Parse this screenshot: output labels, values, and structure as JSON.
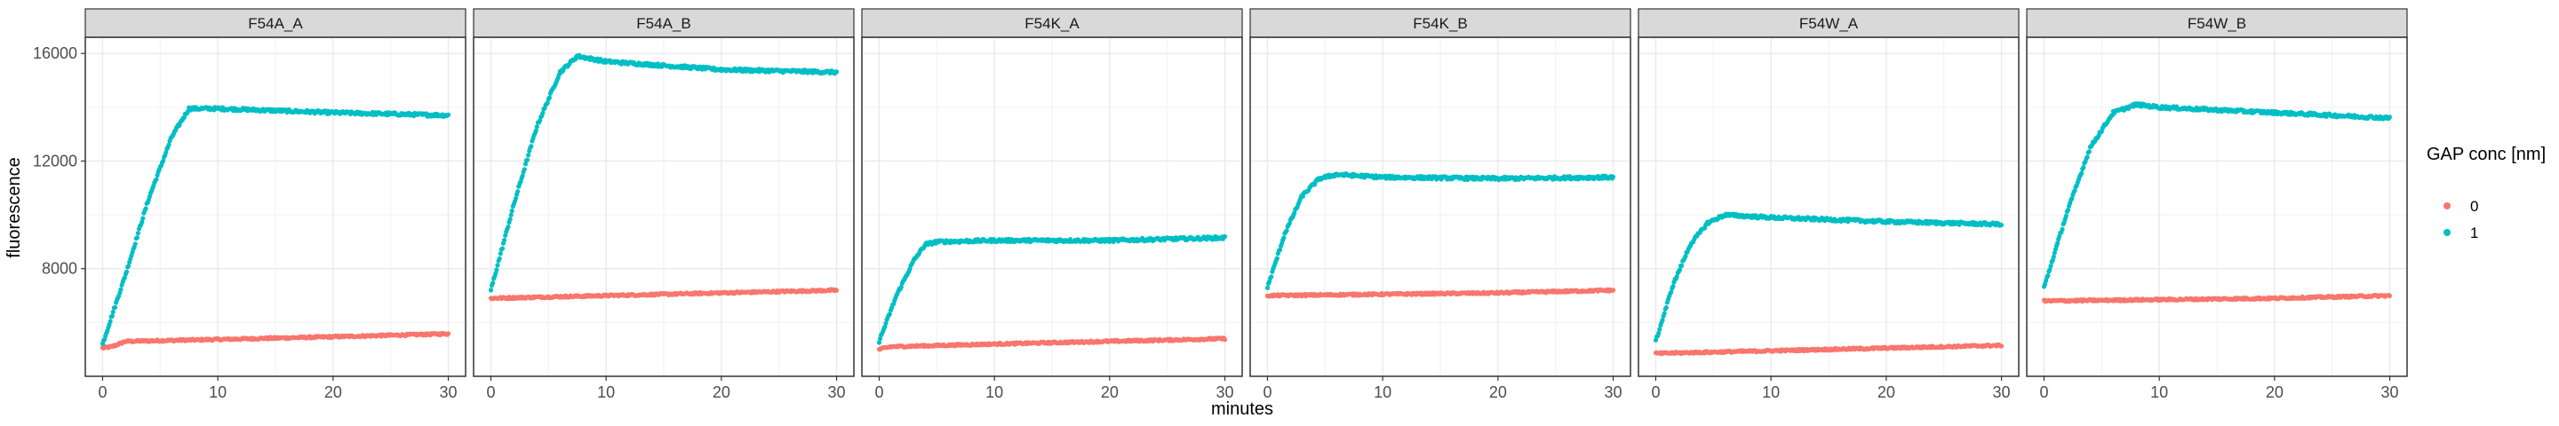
{
  "chart_data": {
    "type": "scatter",
    "xlabel": "minutes",
    "ylabel": "fluorescence",
    "xlim": [
      -1.5,
      31.5
    ],
    "ylim": [
      4000,
      16600
    ],
    "x_ticks": [
      0,
      10,
      20,
      30
    ],
    "y_ticks": [
      8000,
      12000,
      16000
    ],
    "grid": true,
    "legend": {
      "title": "GAP conc [nm]",
      "placement": "right",
      "entries": [
        {
          "label": "0",
          "color": "#F8766D"
        },
        {
          "label": "1",
          "color": "#00BFC4"
        }
      ]
    },
    "panels": [
      {
        "name": "F54A_A",
        "series": [
          {
            "name": "0",
            "color": "#F8766D",
            "points": [
              [
                0,
                5050
              ],
              [
                0.8,
                5100
              ],
              [
                2,
                5300
              ],
              [
                10,
                5370
              ],
              [
                20,
                5470
              ],
              [
                30,
                5580
              ]
            ]
          },
          {
            "name": "1",
            "color": "#00BFC4",
            "points": [
              [
                0,
                5200
              ],
              [
                2,
                7800
              ],
              [
                4,
                10600
              ],
              [
                6,
                12900
              ],
              [
                7.5,
                13950
              ],
              [
                10,
                13950
              ],
              [
                20,
                13800
              ],
              [
                30,
                13700
              ]
            ]
          }
        ]
      },
      {
        "name": "F54A_B",
        "series": [
          {
            "name": "0",
            "color": "#F8766D",
            "points": [
              [
                0,
                6900
              ],
              [
                10,
                7000
              ],
              [
                20,
                7100
              ],
              [
                30,
                7200
              ]
            ]
          },
          {
            "name": "1",
            "color": "#00BFC4",
            "points": [
              [
                0,
                7200
              ],
              [
                2,
                10400
              ],
              [
                4,
                13300
              ],
              [
                6,
                15300
              ],
              [
                7.5,
                15900
              ],
              [
                10,
                15700
              ],
              [
                20,
                15400
              ],
              [
                30,
                15300
              ]
            ]
          }
        ]
      },
      {
        "name": "F54K_A",
        "series": [
          {
            "name": "0",
            "color": "#F8766D",
            "points": [
              [
                0,
                5000
              ],
              [
                1,
                5100
              ],
              [
                10,
                5200
              ],
              [
                20,
                5300
              ],
              [
                30,
                5400
              ]
            ]
          },
          {
            "name": "1",
            "color": "#00BFC4",
            "points": [
              [
                0,
                5300
              ],
              [
                1.5,
                7000
              ],
              [
                3,
                8300
              ],
              [
                4,
                8900
              ],
              [
                5,
                9000
              ],
              [
                10,
                9050
              ],
              [
                20,
                9050
              ],
              [
                30,
                9150
              ]
            ]
          }
        ]
      },
      {
        "name": "F54K_B",
        "series": [
          {
            "name": "0",
            "color": "#F8766D",
            "points": [
              [
                0,
                7000
              ],
              [
                10,
                7050
              ],
              [
                20,
                7100
              ],
              [
                30,
                7200
              ]
            ]
          },
          {
            "name": "1",
            "color": "#00BFC4",
            "points": [
              [
                0,
                7300
              ],
              [
                1.5,
                9300
              ],
              [
                3,
                10700
              ],
              [
                4.5,
                11350
              ],
              [
                6,
                11500
              ],
              [
                10,
                11400
              ],
              [
                20,
                11350
              ],
              [
                30,
                11400
              ]
            ]
          }
        ]
      },
      {
        "name": "F54W_A",
        "series": [
          {
            "name": "0",
            "color": "#F8766D",
            "points": [
              [
                0,
                4850
              ],
              [
                10,
                4950
              ],
              [
                20,
                5050
              ],
              [
                30,
                5150
              ]
            ]
          },
          {
            "name": "1",
            "color": "#00BFC4",
            "points": [
              [
                0,
                5300
              ],
              [
                1.5,
                7400
              ],
              [
                3,
                8900
              ],
              [
                4.5,
                9700
              ],
              [
                6,
                10000
              ],
              [
                10,
                9900
              ],
              [
                20,
                9750
              ],
              [
                30,
                9650
              ]
            ]
          }
        ]
      },
      {
        "name": "F54W_B",
        "series": [
          {
            "name": "0",
            "color": "#F8766D",
            "points": [
              [
                0,
                6800
              ],
              [
                10,
                6850
              ],
              [
                20,
                6900
              ],
              [
                30,
                7000
              ]
            ]
          },
          {
            "name": "1",
            "color": "#00BFC4",
            "points": [
              [
                0,
                7300
              ],
              [
                2,
                10100
              ],
              [
                4,
                12500
              ],
              [
                6,
                13800
              ],
              [
                8,
                14100
              ],
              [
                10,
                14000
              ],
              [
                20,
                13800
              ],
              [
                30,
                13600
              ]
            ]
          }
        ]
      }
    ]
  }
}
